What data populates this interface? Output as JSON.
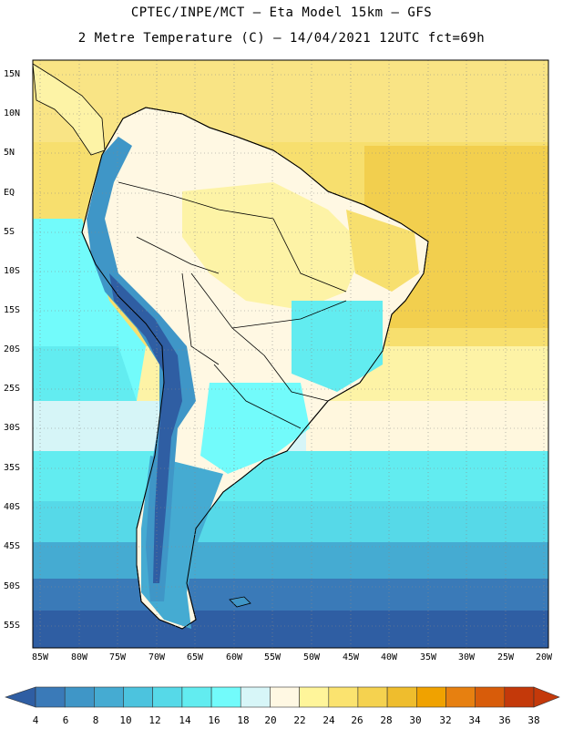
{
  "title_line1": "CPTEC/INPE/MCT –  Eta Model 15km – GFS",
  "title_line2": "2 Metre Temperature (C) – 14/04/2021 12UTC fct=69h",
  "lat_labels": [
    "15N",
    "10N",
    "5N",
    "EQ",
    "5S",
    "10S",
    "15S",
    "20S",
    "25S",
    "30S",
    "35S",
    "40S",
    "45S",
    "50S",
    "55S"
  ],
  "lon_labels": [
    "85W",
    "80W",
    "75W",
    "70W",
    "65W",
    "60W",
    "55W",
    "50W",
    "45W",
    "40W",
    "35W",
    "30W",
    "25W",
    "20W"
  ],
  "colorbar": {
    "ticks": [
      "4",
      "6",
      "8",
      "10",
      "12",
      "14",
      "16",
      "18",
      "20",
      "22",
      "24",
      "26",
      "28",
      "30",
      "32",
      "34",
      "36",
      "38"
    ],
    "colors": [
      "#2f5ea3",
      "#3a7ab8",
      "#3f96c7",
      "#45abd2",
      "#4cc3de",
      "#56d9e8",
      "#62ecf0",
      "#72fbfb",
      "#d7f6f8",
      "#fff8e3",
      "#fff59a",
      "#fbe36f",
      "#f5d24f",
      "#efbd2d",
      "#f0a200",
      "#e78010",
      "#d85c0a",
      "#c4390a"
    ]
  }
}
